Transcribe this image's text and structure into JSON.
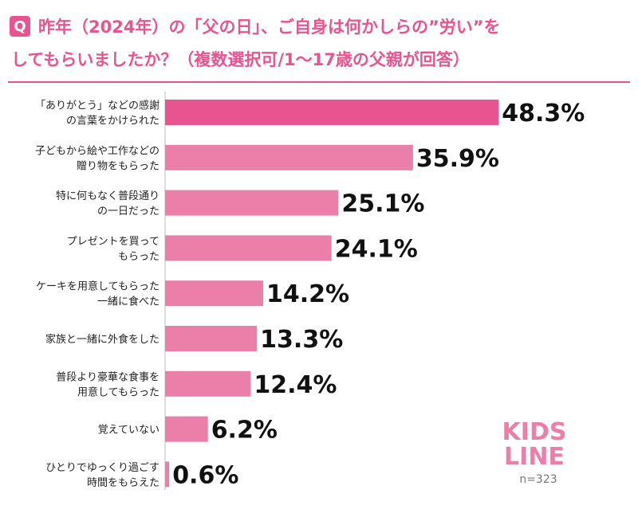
{
  "chart_data": {
    "type": "barh",
    "badge": "Q",
    "title": [
      "昨年（2024年）の「父の日」、ご自身は何かしらの”労い”を",
      "してもらいましたか？（複数選択可/1〜17歳の父親が回答）"
    ],
    "categories": [
      [
        "「ありがとう」などの感謝",
        "の言葉をかけられた"
      ],
      [
        "子どもから絵や工作などの",
        "贈り物をもらった"
      ],
      [
        "特に何もなく普段通り",
        "の一日だった"
      ],
      [
        "プレゼントを買って",
        "もらった"
      ],
      [
        "ケーキを用意してもらった",
        "一緒に食べた"
      ],
      [
        "家族と一緒に外食をした"
      ],
      [
        "普段より豪華な食事を",
        "用意してもらった"
      ],
      [
        "覚えていない"
      ],
      [
        "ひとりでゆっくり過ごす",
        "時間をもらえた"
      ]
    ],
    "values": [
      48.3,
      35.9,
      25.1,
      24.1,
      14.2,
      13.3,
      12.4,
      6.2,
      0.6
    ],
    "value_labels": [
      "48.3%",
      "35.9%",
      "25.1%",
      "24.1%",
      "14.2%",
      "13.3%",
      "12.4%",
      "6.2%",
      "0.6%"
    ],
    "colors": [
      "#e8548f",
      "#ec7fa9",
      "#ec7fa9",
      "#ec7fa9",
      "#ec7fa9",
      "#ec7fa9",
      "#ec7fa9",
      "#ec7fa9",
      "#ec7fa9"
    ],
    "xlim": [
      0,
      50
    ],
    "logo": [
      "KIDS",
      "LINE"
    ],
    "note": "n=323"
  }
}
